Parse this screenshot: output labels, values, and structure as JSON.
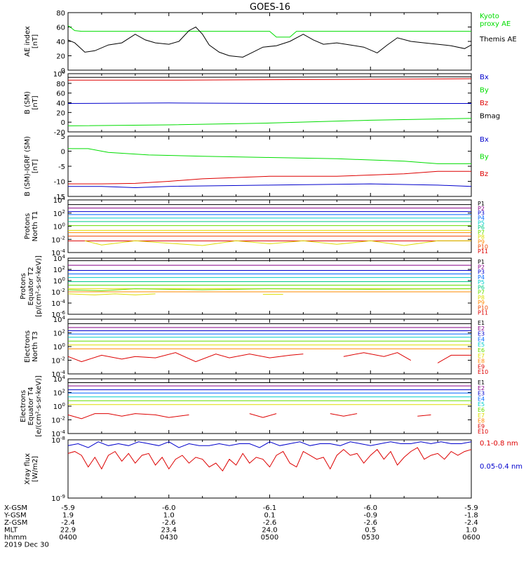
{
  "title": "GOES-16",
  "ephemeris": {
    "labels": [
      "X-GSM",
      "Y-GSM",
      "Z-GSM",
      "MLT",
      "hhmm",
      "2019 Dec 30"
    ],
    "rows": [
      [
        "-5.9",
        "-6.0",
        "-6.1",
        "-6.0",
        "-5.9"
      ],
      [
        "1.9",
        "1.0",
        "0.1",
        "-0.9",
        "-1.8"
      ],
      [
        "-2.4",
        "-2.6",
        "-2.6",
        "-2.6",
        "-2.4"
      ],
      [
        "22.9",
        "23.4",
        "24.0",
        "0.5",
        "1.0"
      ],
      [
        "0400",
        "0430",
        "0500",
        "0530",
        "0600"
      ]
    ]
  },
  "colors": {
    "black": "#000000",
    "green": "#00dd00",
    "red": "#dd0000",
    "blue": "#0000cc",
    "p_colors": [
      "#000000",
      "#880088",
      "#0000cc",
      "#0066ff",
      "#00cccc",
      "#00cc88",
      "#66dd00",
      "#dddd00",
      "#ff8800",
      "#ee4400",
      "#dd0000"
    ]
  },
  "chart_data": [
    {
      "type": "line",
      "ylabel": "AE index\n[nT]",
      "ylim": [
        0,
        80
      ],
      "yticks": [
        "0",
        "20",
        "40",
        "60",
        "80"
      ],
      "legend": [
        {
          "text": "Kyoto\nproxy AE",
          "color": "#00dd00"
        },
        {
          "text": "Themis AE",
          "color": "#000000"
        }
      ],
      "series": [
        {
          "name": "Kyoto proxy AE",
          "color": "#00dd00",
          "x": [
            0,
            2,
            4,
            10,
            40,
            60,
            62,
            66,
            68,
            110,
            120
          ],
          "y": [
            62,
            55,
            54,
            54,
            54,
            54,
            46,
            46,
            54,
            54,
            54
          ]
        },
        {
          "name": "Themis AE",
          "color": "#000000",
          "x": [
            0,
            2,
            5,
            8,
            12,
            16,
            20,
            23,
            26,
            30,
            33,
            36,
            38,
            40,
            42,
            45,
            48,
            52,
            55,
            58,
            62,
            66,
            70,
            73,
            76,
            80,
            84,
            88,
            92,
            95,
            98,
            102,
            106,
            110,
            114,
            118,
            120
          ],
          "y": [
            42,
            38,
            25,
            27,
            35,
            38,
            50,
            42,
            38,
            36,
            40,
            55,
            60,
            50,
            35,
            25,
            20,
            18,
            25,
            32,
            34,
            40,
            50,
            42,
            36,
            38,
            35,
            32,
            24,
            35,
            45,
            40,
            38,
            36,
            34,
            30,
            35
          ]
        }
      ]
    },
    {
      "type": "line",
      "ylabel": "B (SM)\n[nT]",
      "ylim": [
        -25,
        100
      ],
      "yticks": [
        "-20",
        "0",
        "20",
        "40",
        "60",
        "80",
        "100"
      ],
      "legend": [
        {
          "text": "Bx",
          "color": "#0000cc"
        },
        {
          "text": "By",
          "color": "#00dd00"
        },
        {
          "text": "Bz",
          "color": "#dd0000"
        },
        {
          "text": "Bmag",
          "color": "#000000"
        }
      ],
      "series": [
        {
          "name": "Bmag",
          "color": "#000000",
          "x": [
            0,
            120
          ],
          "y": [
            92,
            93
          ]
        },
        {
          "name": "Bz",
          "color": "#dd0000",
          "x": [
            0,
            30,
            60,
            90,
            120
          ],
          "y": [
            86,
            86,
            87,
            88,
            89
          ]
        },
        {
          "name": "Bx",
          "color": "#0000cc",
          "x": [
            0,
            30,
            60,
            90,
            120
          ],
          "y": [
            36,
            37,
            36,
            36,
            36
          ]
        },
        {
          "name": "By",
          "color": "#00dd00",
          "x": [
            0,
            30,
            60,
            90,
            120
          ],
          "y": [
            -12,
            -10,
            -6,
            0,
            4
          ]
        }
      ]
    },
    {
      "type": "line",
      "ylabel": "B (SM)-IGRF (SM)\n[nT]",
      "ylim": [
        -17,
        7
      ],
      "yticks": [
        "-15",
        "-10",
        "-5",
        "0",
        "5"
      ],
      "legend": [
        {
          "text": "Bx",
          "color": "#0000cc"
        },
        {
          "text": "By",
          "color": "#00dd00"
        },
        {
          "text": "Bz",
          "color": "#dd0000"
        }
      ],
      "series": [
        {
          "name": "By",
          "color": "#00dd00",
          "x": [
            0,
            6,
            12,
            24,
            40,
            60,
            80,
            100,
            110,
            120
          ],
          "y": [
            2,
            2,
            0.5,
            -0.5,
            -1,
            -1.5,
            -2,
            -3,
            -4,
            -4
          ]
        },
        {
          "name": "Bz",
          "color": "#dd0000",
          "x": [
            0,
            10,
            20,
            30,
            40,
            60,
            80,
            100,
            110,
            120
          ],
          "y": [
            -12,
            -12,
            -11.8,
            -11,
            -10,
            -9,
            -9,
            -8,
            -7,
            -7
          ]
        },
        {
          "name": "Bx",
          "color": "#0000cc",
          "x": [
            0,
            10,
            20,
            30,
            60,
            90,
            110,
            120
          ],
          "y": [
            -13,
            -13,
            -13.5,
            -13,
            -12.5,
            -12,
            -12.5,
            -13
          ]
        }
      ]
    },
    {
      "type": "line",
      "ylabel": "Protons\nNorth T1",
      "log": true,
      "ylim": [
        -5,
        4
      ],
      "yticks": [
        "10-4",
        "10-2",
        "100",
        "102",
        "104"
      ],
      "legend": [
        {
          "text": "P1",
          "color": "#000000"
        },
        {
          "text": "P2",
          "color": "#880088"
        },
        {
          "text": "P3",
          "color": "#0000cc"
        },
        {
          "text": "P4",
          "color": "#0066ff"
        },
        {
          "text": "P5",
          "color": "#00cccc"
        },
        {
          "text": "P6",
          "color": "#00cc88"
        },
        {
          "text": "P7",
          "color": "#66dd00"
        },
        {
          "text": "P8",
          "color": "#dddd00"
        },
        {
          "text": "P9",
          "color": "#ff8800"
        },
        {
          "text": "P10",
          "color": "#ee4400"
        },
        {
          "text": "P11",
          "color": "#dd0000"
        }
      ],
      "levels": [
        3.2,
        2.6,
        2.0,
        1.5,
        0.9,
        0.3,
        -0.4,
        -1.2,
        -1.6,
        -2.2,
        -3.0
      ],
      "series": [
        {
          "name": "P8",
          "color": "#dddd00",
          "x": [
            5,
            10,
            20,
            30,
            40,
            50,
            60,
            70,
            80,
            90,
            100,
            110,
            120
          ],
          "y": [
            -3,
            -3.7,
            -3,
            -3.4,
            -3.8,
            -3,
            -3.5,
            -3,
            -3.6,
            -3,
            -3.8,
            -3,
            -3
          ]
        }
      ]
    },
    {
      "type": "line",
      "ylabel": "Protons\nEquator T2\n[p/(cm²-s-sr-keV)]",
      "log": true,
      "ylim": [
        -7,
        4
      ],
      "yticks": [
        "10-6",
        "10-4",
        "10-2",
        "100",
        "102",
        "104"
      ],
      "legend": [
        {
          "text": "P1",
          "color": "#000000"
        },
        {
          "text": "P2",
          "color": "#880088"
        },
        {
          "text": "P3",
          "color": "#0000cc"
        },
        {
          "text": "P4",
          "color": "#0066ff"
        },
        {
          "text": "P5",
          "color": "#00cccc"
        },
        {
          "text": "P6",
          "color": "#00cc88"
        },
        {
          "text": "P7",
          "color": "#66dd00"
        },
        {
          "text": "P8",
          "color": "#dddd00"
        },
        {
          "text": "P9",
          "color": "#ff8800"
        },
        {
          "text": "P10",
          "color": "#ee4400"
        },
        {
          "text": "P11",
          "color": "#dd0000"
        }
      ],
      "levels": [
        3.5,
        2.6,
        1.6,
        0.9,
        0.2,
        -0.6,
        -1.3,
        -2.0,
        -2.6
      ],
      "series": [
        {
          "name": "P9",
          "color": "#dddd00",
          "x": [
            0,
            8,
            14,
            20,
            26
          ],
          "y": [
            -3.0,
            -3.2,
            -3.0,
            -3.2,
            -3.0
          ]
        },
        {
          "name": "P9b",
          "color": "#dddd00",
          "x": [
            58,
            64
          ],
          "y": [
            -3.1,
            -3.1
          ]
        },
        {
          "name": "P8",
          "color": "#66dd00",
          "x": [
            0,
            10,
            20,
            40,
            60,
            90,
            120
          ],
          "y": [
            -2.2,
            -2.4,
            -2.0,
            -2.2,
            -2.0,
            -2.1,
            -2.0
          ]
        }
      ]
    },
    {
      "type": "line",
      "ylabel": "Electrons\nNorth T3",
      "log": true,
      "ylim": [
        -4.5,
        4
      ],
      "yticks": [
        "10-4",
        "10-2",
        "100",
        "102",
        "104"
      ],
      "legend": [
        {
          "text": "E1",
          "color": "#000000"
        },
        {
          "text": "E2",
          "color": "#880088"
        },
        {
          "text": "E3",
          "color": "#0000cc"
        },
        {
          "text": "E4",
          "color": "#0066ff"
        },
        {
          "text": "E5",
          "color": "#00cccc"
        },
        {
          "text": "E6",
          "color": "#66dd00"
        },
        {
          "text": "E7",
          "color": "#dddd00"
        },
        {
          "text": "E8",
          "color": "#ff8800"
        },
        {
          "text": "E9",
          "color": "#dd0000"
        },
        {
          "text": "E10",
          "color": "#dd0000"
        }
      ],
      "levels": [
        3.3,
        2.7,
        2.2,
        1.7,
        1.2,
        0.6,
        0.0,
        -0.6
      ],
      "series": [
        {
          "name": "E9",
          "color": "#dd0000",
          "x": [
            0,
            4,
            10,
            16,
            20,
            26,
            32,
            38,
            44,
            48,
            54,
            60,
            66,
            70
          ],
          "y": [
            -1.8,
            -2.6,
            -1.6,
            -2.2,
            -1.8,
            -2.0,
            -1.2,
            -2.6,
            -1.4,
            -2.0,
            -1.4,
            -2.0,
            -1.6,
            -1.4
          ]
        },
        {
          "name": "E9b",
          "color": "#dd0000",
          "x": [
            82,
            88,
            94,
            98,
            102
          ],
          "y": [
            -1.8,
            -1.2,
            -1.8,
            -1.2,
            -2.4
          ]
        },
        {
          "name": "E9c",
          "color": "#dd0000",
          "x": [
            110,
            114,
            120
          ],
          "y": [
            -2.8,
            -1.6,
            -1.6
          ]
        }
      ]
    },
    {
      "type": "line",
      "ylabel": "Electrons\nEquator T4\n[e/(cm²-s-sr-keV)]",
      "log": true,
      "ylim": [
        -4.5,
        4
      ],
      "yticks": [
        "10-4",
        "10-2",
        "100",
        "102",
        "104"
      ],
      "legend": [
        {
          "text": "E1",
          "color": "#000000"
        },
        {
          "text": "E2",
          "color": "#880088"
        },
        {
          "text": "E3",
          "color": "#0000cc"
        },
        {
          "text": "E4",
          "color": "#0066ff"
        },
        {
          "text": "E5",
          "color": "#00cccc"
        },
        {
          "text": "E6",
          "color": "#66dd00"
        },
        {
          "text": "E7",
          "color": "#dddd00"
        },
        {
          "text": "E8",
          "color": "#ff8800"
        },
        {
          "text": "E9",
          "color": "#dd0000"
        },
        {
          "text": "E10",
          "color": "#dd0000"
        }
      ],
      "levels": [
        3.4,
        2.9,
        2.3,
        1.8,
        1.2,
        0.6,
        0.0
      ],
      "series": [
        {
          "name": "E9",
          "color": "#dd0000",
          "x": [
            0,
            4,
            8,
            12,
            16,
            20,
            26,
            30,
            36
          ],
          "y": [
            -1.6,
            -2.2,
            -1.4,
            -1.4,
            -1.8,
            -1.4,
            -1.6,
            -2.0,
            -1.6
          ]
        },
        {
          "name": "E9b",
          "color": "#dd0000",
          "x": [
            54,
            58,
            62
          ],
          "y": [
            -1.4,
            -2.0,
            -1.4
          ]
        },
        {
          "name": "E9c",
          "color": "#dd0000",
          "x": [
            78,
            82,
            86
          ],
          "y": [
            -1.4,
            -1.8,
            -1.4
          ]
        },
        {
          "name": "E9d",
          "color": "#dd0000",
          "x": [
            104,
            108
          ],
          "y": [
            -1.8,
            -1.6
          ]
        }
      ]
    },
    {
      "type": "line",
      "ylabel": "Xray flux\n[W/m2]",
      "log": true,
      "ylim": [
        -9,
        -6
      ],
      "yticks": [
        "10-9",
        "10-8"
      ],
      "legend": [
        {
          "text": "0.1-0.8 nm",
          "color": "#dd0000"
        },
        {
          "text": "0.05-0.4 nm",
          "color": "#0000cc"
        }
      ],
      "series": [
        {
          "name": "0.1-0.8 nm",
          "color": "#dd0000",
          "x": [
            0,
            2,
            4,
            6,
            8,
            10,
            12,
            14,
            16,
            18,
            20,
            22,
            24,
            26,
            28,
            30,
            32,
            34,
            36,
            38,
            40,
            42,
            44,
            46,
            48,
            50,
            52,
            54,
            56,
            58,
            60,
            62,
            64,
            66,
            68,
            70,
            72,
            74,
            76,
            78,
            80,
            82,
            84,
            86,
            88,
            90,
            92,
            94,
            96,
            98,
            100,
            102,
            104,
            106,
            108,
            110,
            112,
            114,
            116,
            118,
            120
          ],
          "y": [
            -6.7,
            -6.6,
            -6.8,
            -7.4,
            -6.9,
            -7.5,
            -6.8,
            -6.6,
            -7.1,
            -6.7,
            -7.2,
            -6.8,
            -6.7,
            -7.3,
            -6.9,
            -7.5,
            -7.0,
            -6.8,
            -7.2,
            -6.9,
            -7.0,
            -7.4,
            -7.2,
            -7.6,
            -7.0,
            -7.3,
            -6.7,
            -7.2,
            -6.9,
            -7.0,
            -7.4,
            -6.8,
            -6.6,
            -7.2,
            -7.4,
            -6.6,
            -6.8,
            -7.0,
            -6.9,
            -7.5,
            -6.8,
            -6.5,
            -6.8,
            -6.7,
            -7.2,
            -6.8,
            -6.5,
            -7.0,
            -6.6,
            -7.3,
            -6.9,
            -6.6,
            -6.4,
            -7.0,
            -6.8,
            -6.7,
            -7.0,
            -6.6,
            -6.8,
            -6.6,
            -6.5
          ]
        },
        {
          "name": "0.05-0.4 nm",
          "color": "#0000cc",
          "x": [
            0,
            3,
            6,
            9,
            12,
            15,
            18,
            21,
            24,
            27,
            30,
            33,
            36,
            39,
            42,
            45,
            48,
            51,
            54,
            57,
            60,
            63,
            66,
            69,
            72,
            75,
            78,
            81,
            84,
            87,
            90,
            93,
            96,
            99,
            102,
            105,
            108,
            111,
            114,
            117,
            120
          ],
          "y": [
            -6.3,
            -6.2,
            -6.4,
            -6.1,
            -6.3,
            -6.2,
            -6.3,
            -6.1,
            -6.2,
            -6.3,
            -6.1,
            -6.4,
            -6.2,
            -6.3,
            -6.3,
            -6.2,
            -6.3,
            -6.2,
            -6.2,
            -6.4,
            -6.1,
            -6.3,
            -6.2,
            -6.1,
            -6.3,
            -6.2,
            -6.2,
            -6.3,
            -6.1,
            -6.2,
            -6.3,
            -6.2,
            -6.1,
            -6.2,
            -6.2,
            -6.1,
            -6.2,
            -6.1,
            -6.2,
            -6.2,
            -6.1
          ]
        }
      ]
    }
  ]
}
